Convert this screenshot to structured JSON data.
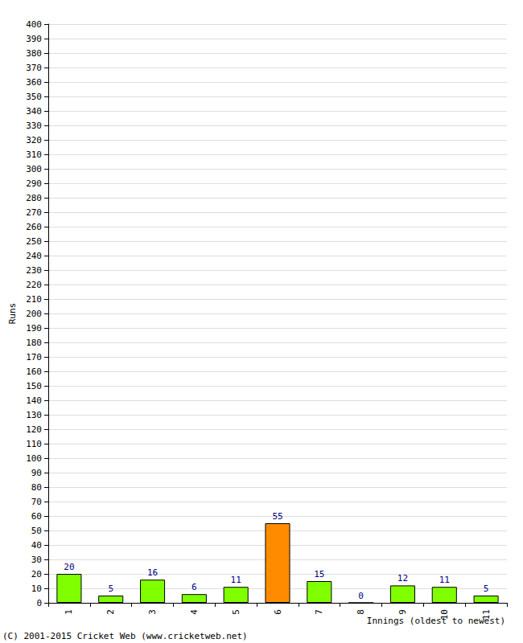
{
  "chart_data": {
    "type": "bar",
    "categories": [
      "1",
      "2",
      "3",
      "4",
      "5",
      "6",
      "7",
      "8",
      "9",
      "10",
      "11"
    ],
    "values": [
      20,
      5,
      16,
      6,
      11,
      55,
      15,
      0,
      12,
      11,
      5
    ],
    "colors": [
      "#80ff00",
      "#80ff00",
      "#80ff00",
      "#80ff00",
      "#80ff00",
      "#ff8c00",
      "#80ff00",
      "#80ff00",
      "#80ff00",
      "#80ff00",
      "#80ff00"
    ],
    "xlabel": "Innings (oldest to newest)",
    "ylabel": "Runs",
    "ylim": [
      0,
      400
    ],
    "yticks": [
      0,
      10,
      20,
      30,
      40,
      50,
      60,
      70,
      80,
      90,
      100,
      110,
      120,
      130,
      140,
      150,
      160,
      170,
      180,
      190,
      200,
      210,
      220,
      230,
      240,
      250,
      260,
      270,
      280,
      290,
      300,
      310,
      320,
      330,
      340,
      350,
      360,
      370,
      380,
      390,
      400
    ],
    "grid": true,
    "data_labels": true,
    "annotations": [
      "(C) 2001-2015 Cricket Web (www.cricketweb.net)"
    ]
  }
}
